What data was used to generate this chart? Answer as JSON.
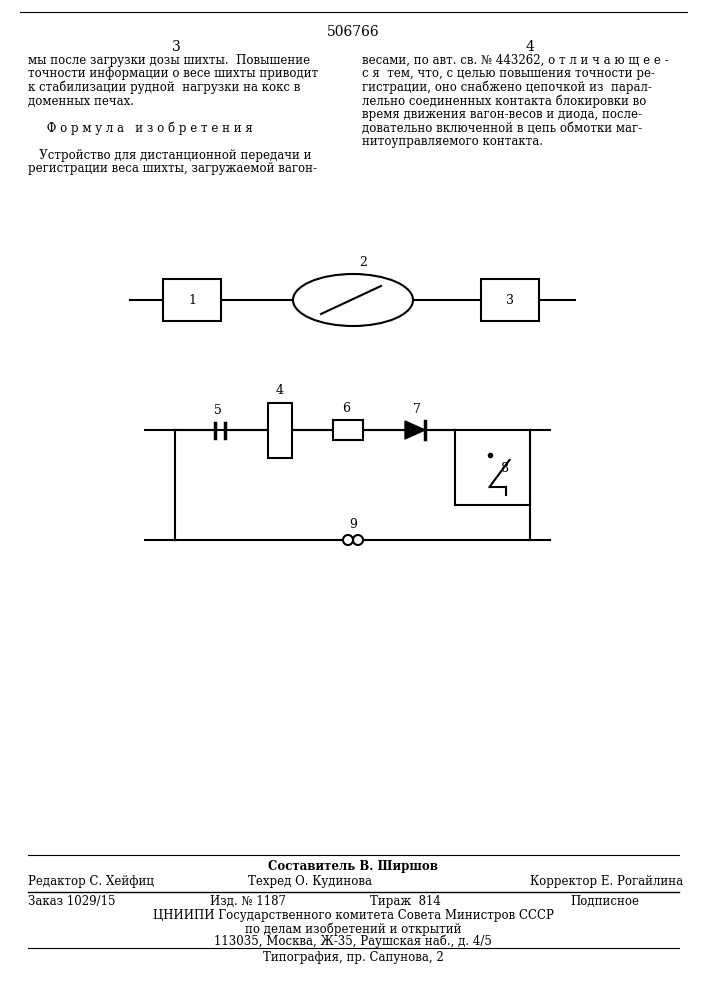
{
  "title": "506766",
  "page_left": "3",
  "page_right": "4",
  "text_left": "мы после загрузки дозы шихты.  Повышение\nточности информации о весе шихты приводит\nк стабилизации рудной  нагрузки на кокс в\nдоменных печах.\n\n     Ф о р м у л а   и з о б р е т е н и я\n\n   Устройство для дистанционной передачи и\nрегистрации веса шихты, загружаемой вагон-",
  "text_right": "весами, по авт. св. № 443262, о т л и ч а ю щ е е -\nс я  тем, что, с целью повышения точности ре-\nгистрации, оно снабжено цепочкой из  парал-\nлельно соединенных контакта блокировки во\nвремя движения вагон-весов и диода, после-\nдовательно включенной в цепь обмотки маг-\nнитоуправляемого контакта.",
  "footer_composer": "Составитель В. Ширшов",
  "footer_editor": "Редактор С. Хейфиц",
  "footer_techred": "Техред О. Кудинова",
  "footer_corrector": "Корректор Е. Рогайлина",
  "footer_order": "Заказ 1029/15",
  "footer_izdanie": "Изд. № 1187",
  "footer_tirazh": "Тираж  814",
  "footer_podpisnoe": "Подписное",
  "footer_tsniigi": "ЦНИИПИ Государственного комитета Совета Министров СССР",
  "footer_dela": "по делам изобретений и открытий",
  "footer_address": "113035, Москва, Ж-35, Раушская наб., д. 4/5",
  "footer_tipografia": "Типография, пр. Сапунова, 2",
  "bg_color": "#ffffff",
  "text_color": "#000000"
}
